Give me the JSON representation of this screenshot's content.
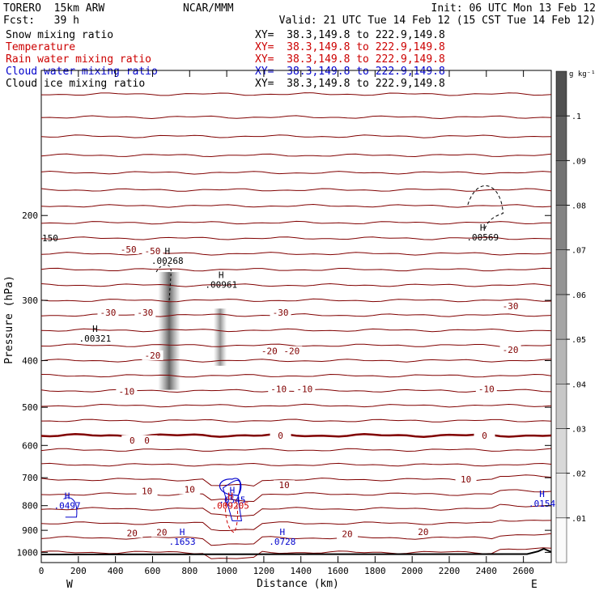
{
  "header": {
    "model": "TORERO  15km ARW",
    "center": "NCAR/MMM",
    "init": "Init: 06 UTC Mon 13 Feb 12",
    "fcst": "Fcst:   39 h",
    "valid": "Valid: 21 UTC Tue 14 Feb 12 (15 CST Tue 14 Feb 12)"
  },
  "legend": [
    {
      "label": "Snow mixing ratio",
      "xy": "XY=  38.3,149.8 to 222.9,149.8",
      "color": "#000000"
    },
    {
      "label": "Temperature",
      "xy": "XY=  38.3,149.8 to 222.9,149.8",
      "color": "#cc0000"
    },
    {
      "label": "Rain water mixing ratio",
      "xy": "XY=  38.3,149.8 to 222.9,149.8",
      "color": "#cc0000"
    },
    {
      "label": "Cloud water mixing ratio",
      "xy": "XY=  38.3,149.8 to 222.9,149.8",
      "color": "#0000cc"
    },
    {
      "label": "Cloud ice mixing ratio",
      "xy": "XY=  38.3,149.8 to 222.9,149.8",
      "color": "#000000"
    }
  ],
  "colors": {
    "temperature": "#800000",
    "cloud_water": "#0000cc",
    "rain": "#cc0000",
    "ice": "#000000",
    "terrain": "#000000"
  },
  "chart_data": {
    "type": "line",
    "xlabel": "Distance (km)",
    "ylabel": "Pressure (hPa)",
    "xlim": [
      0,
      2750
    ],
    "ylim": [
      1050,
      100
    ],
    "y_scale": "log",
    "x_ticks": [
      0,
      200,
      400,
      600,
      800,
      1000,
      1200,
      1400,
      1600,
      1800,
      2000,
      2200,
      2400,
      2600
    ],
    "y_ticks": [
      200,
      300,
      400,
      500,
      600,
      700,
      800,
      900,
      1000
    ],
    "x_endpoints": {
      "left": "W",
      "right": "E"
    },
    "temperature_labels": [
      {
        "text": "-50",
        "x": 470,
        "p": 235
      },
      {
        "text": "-50",
        "x": 600,
        "p": 237
      },
      {
        "text": "-30",
        "x": 360,
        "p": 318
      },
      {
        "text": "-30",
        "x": 560,
        "p": 318
      },
      {
        "text": "-30",
        "x": 1290,
        "p": 318
      },
      {
        "text": "-30",
        "x": 2530,
        "p": 308
      },
      {
        "text": "-20",
        "x": 600,
        "p": 390
      },
      {
        "text": "-20",
        "x": 1230,
        "p": 382
      },
      {
        "text": "-20",
        "x": 1350,
        "p": 382
      },
      {
        "text": "-20",
        "x": 2530,
        "p": 380
      },
      {
        "text": "-10",
        "x": 460,
        "p": 463
      },
      {
        "text": "-10",
        "x": 1280,
        "p": 458
      },
      {
        "text": "-10",
        "x": 1420,
        "p": 458
      },
      {
        "text": "-10",
        "x": 2400,
        "p": 458
      },
      {
        "text": "0",
        "x": 490,
        "p": 585
      },
      {
        "text": "0",
        "x": 570,
        "p": 585
      },
      {
        "text": "0",
        "x": 1290,
        "p": 572
      },
      {
        "text": "0",
        "x": 2390,
        "p": 572
      },
      {
        "text": "10",
        "x": 570,
        "p": 745
      },
      {
        "text": "10",
        "x": 800,
        "p": 740
      },
      {
        "text": "10",
        "x": 1310,
        "p": 725
      },
      {
        "text": "10",
        "x": 2290,
        "p": 705
      },
      {
        "text": "20",
        "x": 490,
        "p": 911
      },
      {
        "text": "20",
        "x": 650,
        "p": 908
      },
      {
        "text": "20",
        "x": 1650,
        "p": 915
      },
      {
        "text": "20",
        "x": 2060,
        "p": 907
      }
    ],
    "highs": [
      {
        "field": "snow",
        "value": ".00321",
        "x": 290,
        "p": 360
      },
      {
        "field": "snow",
        "value": ".00268",
        "x": 680,
        "p": 248
      },
      {
        "field": "snow",
        "value": ".00961",
        "x": 970,
        "p": 278
      },
      {
        "field": "snow",
        "value": ".00569",
        "x": 2380,
        "p": 222
      },
      {
        "field": "cloud_water",
        "value": ".0497",
        "x": 140,
        "p": 800
      },
      {
        "field": "cloud_water",
        "value": ".6545",
        "x": 1030,
        "p": 778
      },
      {
        "field": "cloud_water",
        "value": ".1653",
        "x": 760,
        "p": 950
      },
      {
        "field": "cloud_water",
        "value": ".0728",
        "x": 1300,
        "p": 950
      },
      {
        "field": "cloud_water",
        "value": ".0154",
        "x": 2700,
        "p": 792
      },
      {
        "field": "rain",
        "value": ".009205",
        "x": 1020,
        "p": 800
      }
    ],
    "high_marker": "H",
    "edge_label": "150",
    "colorbar": {
      "field": "Cloud ice mixing ratio",
      "units": "g kg⁻¹",
      "ticks": [
        ".01",
        ".02",
        ".03",
        ".04",
        ".05",
        ".06",
        ".07",
        ".08",
        ".09",
        ".1"
      ]
    }
  }
}
